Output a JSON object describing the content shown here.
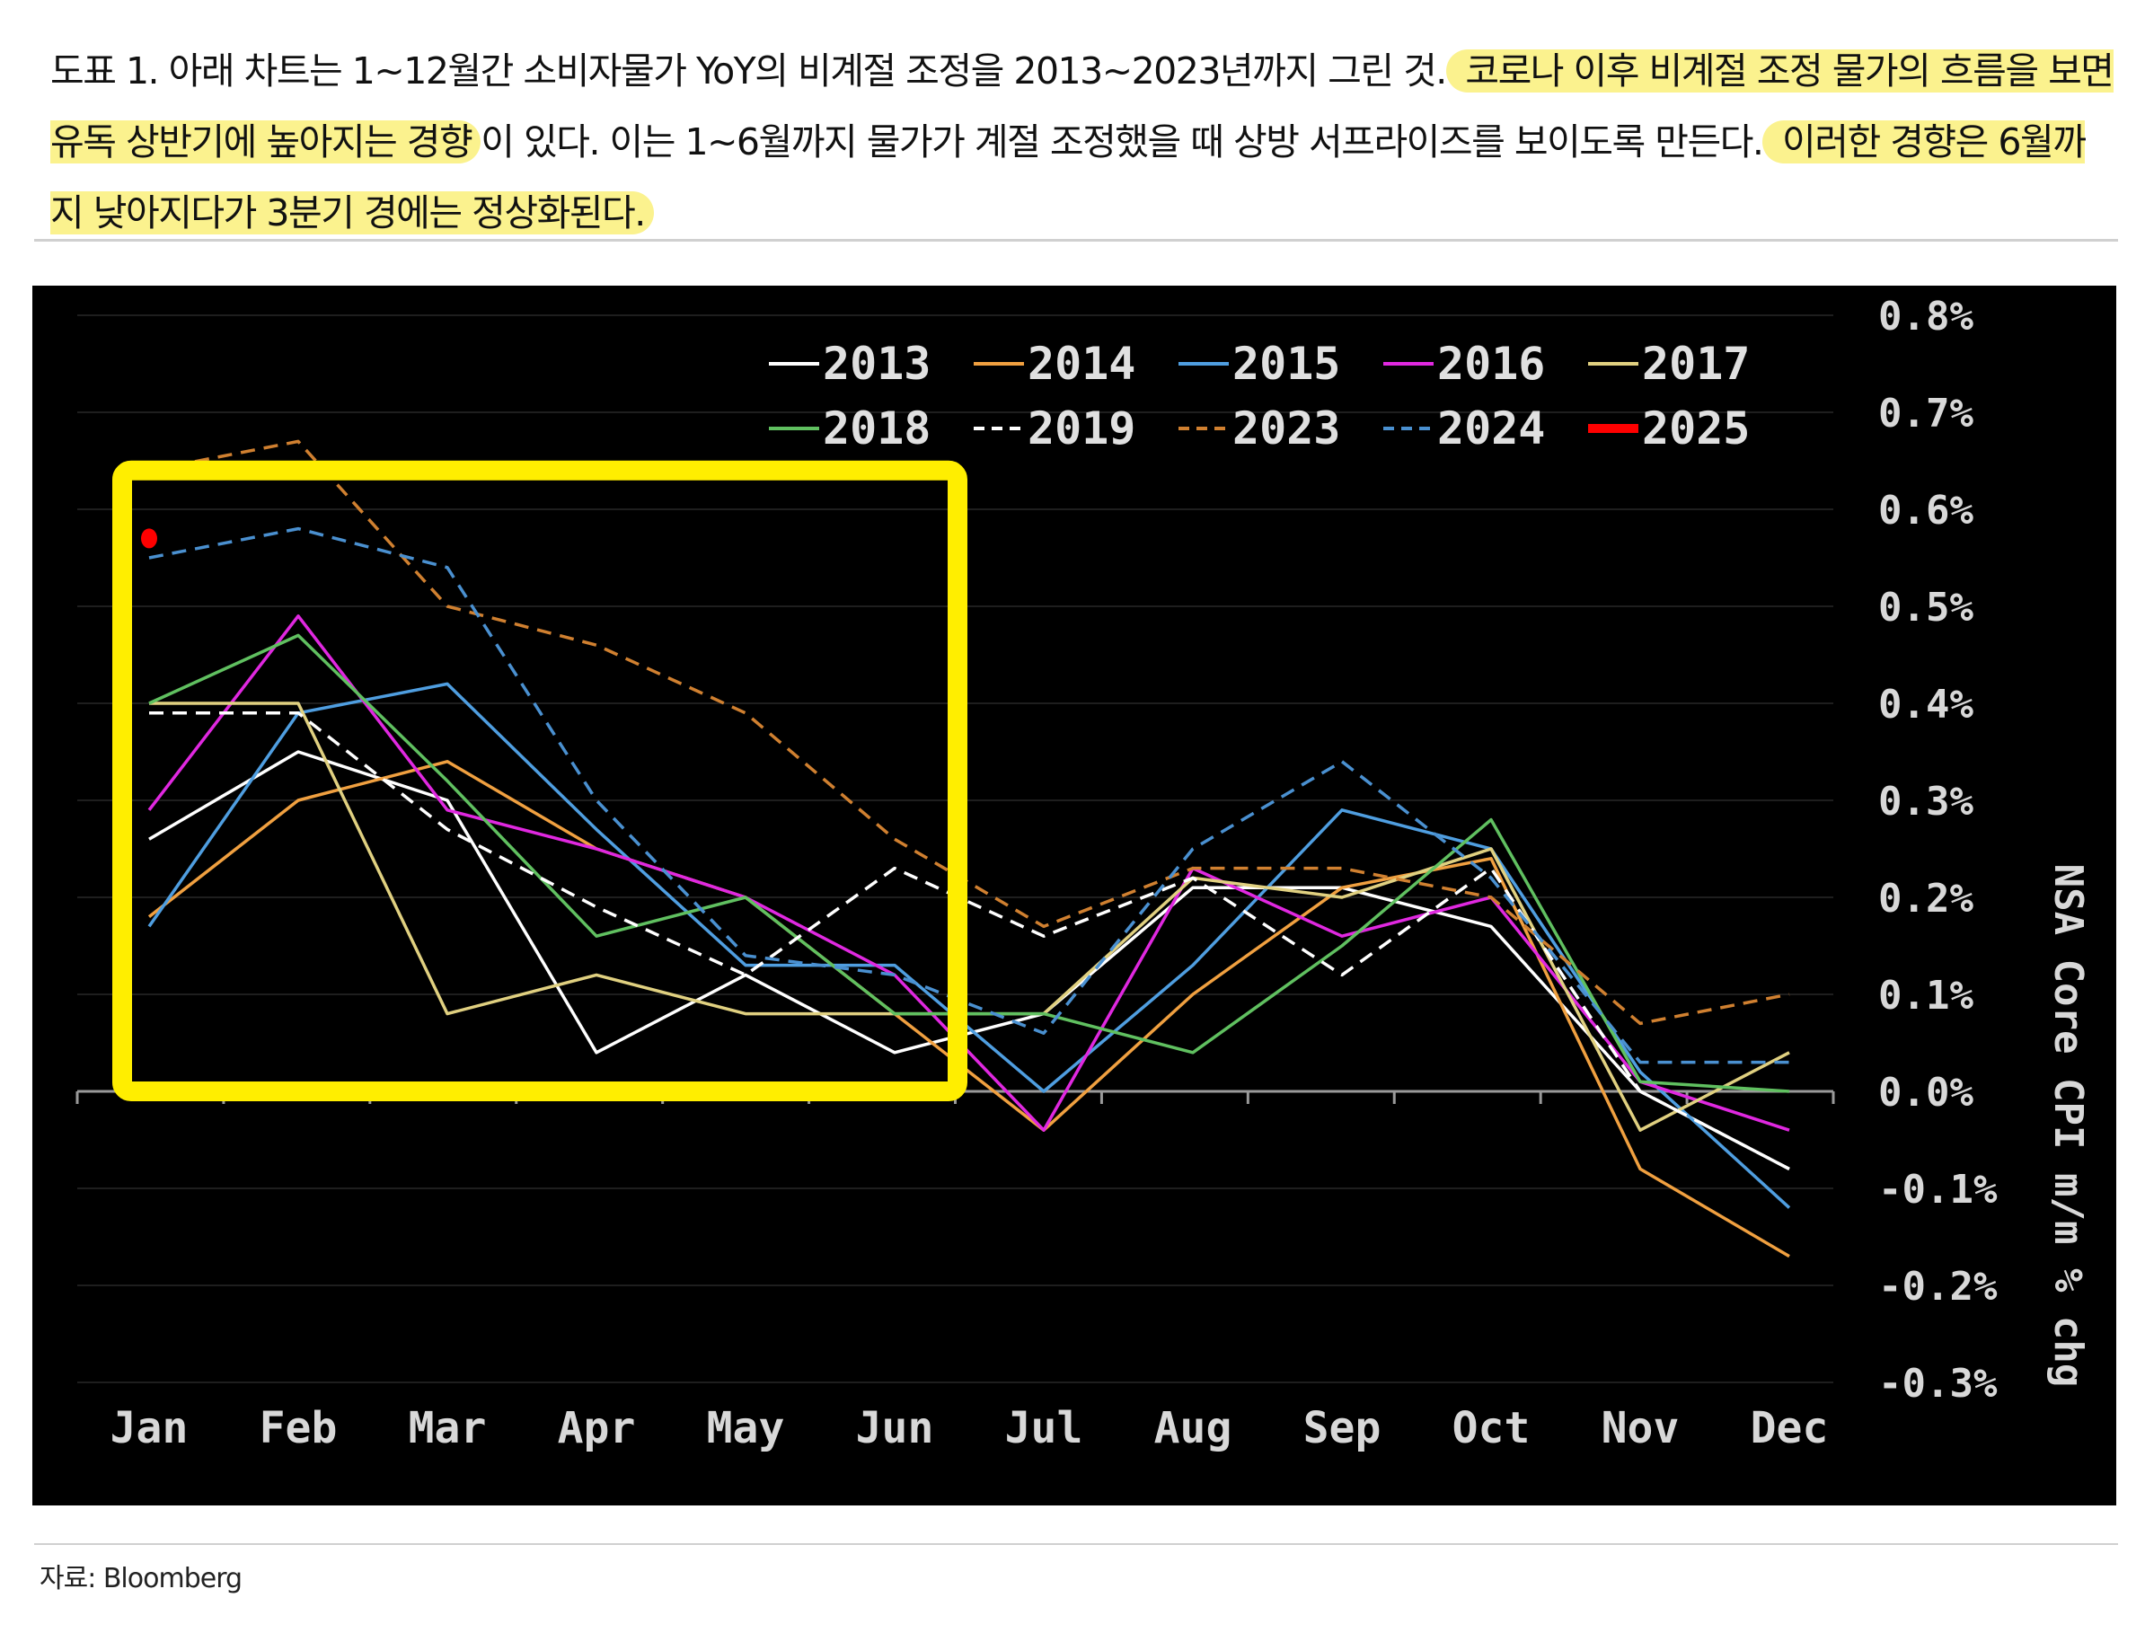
{
  "caption": {
    "segments": [
      {
        "text": "도표 1. 아래 차트는 1~12월간 소비자물가 YoY의 비계절 조정을 2013~2023년까지 그린 것.",
        "highlight": false
      },
      {
        "text": " 코로나 이후 비계절 조정 물가의 흐름을 보면 유독 상반기에 높아지는 경향",
        "highlight": true
      },
      {
        "text": "이 있다. 이는 1~6월까지 물가가 계절 조정했을 때 상방 서프라이즈를 보이도록 만든다.",
        "highlight": false
      },
      {
        "text": " 이러한 경향은 6월까지 낮아지다가 3분기 경에는 정상화된다.",
        "highlight": true
      }
    ]
  },
  "source": "자료: Bloomberg",
  "chart_data": {
    "type": "line",
    "categories": [
      "Jan",
      "Feb",
      "Mar",
      "Apr",
      "May",
      "Jun",
      "Jul",
      "Aug",
      "Sep",
      "Oct",
      "Nov",
      "Dec"
    ],
    "y_ticks": [
      "0.8%",
      "0.7%",
      "0.6%",
      "0.5%",
      "0.4%",
      "0.3%",
      "0.2%",
      "0.1%",
      "0.0%",
      "-0.1%",
      "-0.2%",
      "-0.3%"
    ],
    "ylim": [
      -0.3,
      0.8
    ],
    "ylabel": "NSA Core CPI m/m % chg",
    "xlabel": "",
    "title": "",
    "grid": true,
    "legend_position": "top",
    "background": "#000000",
    "highlight_box": {
      "from": "Jan",
      "to": "Jun",
      "color": "#ffee00"
    },
    "series": [
      {
        "name": "2013",
        "color": "#ffffff",
        "dash": "solid",
        "values": [
          0.26,
          0.35,
          0.3,
          0.04,
          0.12,
          0.04,
          0.08,
          0.21,
          0.21,
          0.17,
          0.0,
          -0.08
        ]
      },
      {
        "name": "2014",
        "color": "#f0a040",
        "dash": "solid",
        "values": [
          0.18,
          0.3,
          0.34,
          0.25,
          0.2,
          0.08,
          -0.04,
          0.1,
          0.21,
          0.24,
          -0.08,
          -0.17
        ]
      },
      {
        "name": "2015",
        "color": "#4f9ee0",
        "dash": "solid",
        "values": [
          0.17,
          0.39,
          0.42,
          0.27,
          0.13,
          0.13,
          0.0,
          0.13,
          0.29,
          0.25,
          0.02,
          -0.12
        ]
      },
      {
        "name": "2016",
        "color": "#e028e0",
        "dash": "solid",
        "values": [
          0.29,
          0.49,
          0.29,
          0.25,
          0.2,
          0.12,
          -0.04,
          0.23,
          0.16,
          0.2,
          0.01,
          -0.04
        ]
      },
      {
        "name": "2017",
        "color": "#e0d080",
        "dash": "solid",
        "values": [
          0.4,
          0.4,
          0.08,
          0.12,
          0.08,
          0.08,
          0.08,
          0.22,
          0.2,
          0.25,
          -0.04,
          0.04
        ]
      },
      {
        "name": "2018",
        "color": "#60c060",
        "dash": "solid",
        "values": [
          0.4,
          0.47,
          0.32,
          0.16,
          0.2,
          0.08,
          0.08,
          0.04,
          0.15,
          0.28,
          0.01,
          0.0
        ]
      },
      {
        "name": "2019",
        "color": "#ffffff",
        "dash": "dashed",
        "values": [
          0.39,
          0.39,
          0.27,
          0.19,
          0.12,
          0.23,
          0.16,
          0.22,
          0.12,
          0.23,
          0.0,
          -0.08
        ]
      },
      {
        "name": "2023",
        "color": "#d08030",
        "dash": "dashed",
        "values": [
          0.64,
          0.67,
          0.5,
          0.46,
          0.39,
          0.26,
          0.17,
          0.23,
          0.23,
          0.2,
          0.07,
          0.1
        ]
      },
      {
        "name": "2024",
        "color": "#4a90d0",
        "dash": "dashed",
        "values": [
          0.55,
          0.58,
          0.54,
          0.3,
          0.14,
          0.12,
          0.06,
          0.25,
          0.34,
          0.22,
          0.03,
          0.03
        ]
      },
      {
        "name": "2025",
        "color": "#ff0000",
        "dash": "marker",
        "values": [
          0.57,
          null,
          null,
          null,
          null,
          null,
          null,
          null,
          null,
          null,
          null,
          null
        ]
      }
    ]
  }
}
